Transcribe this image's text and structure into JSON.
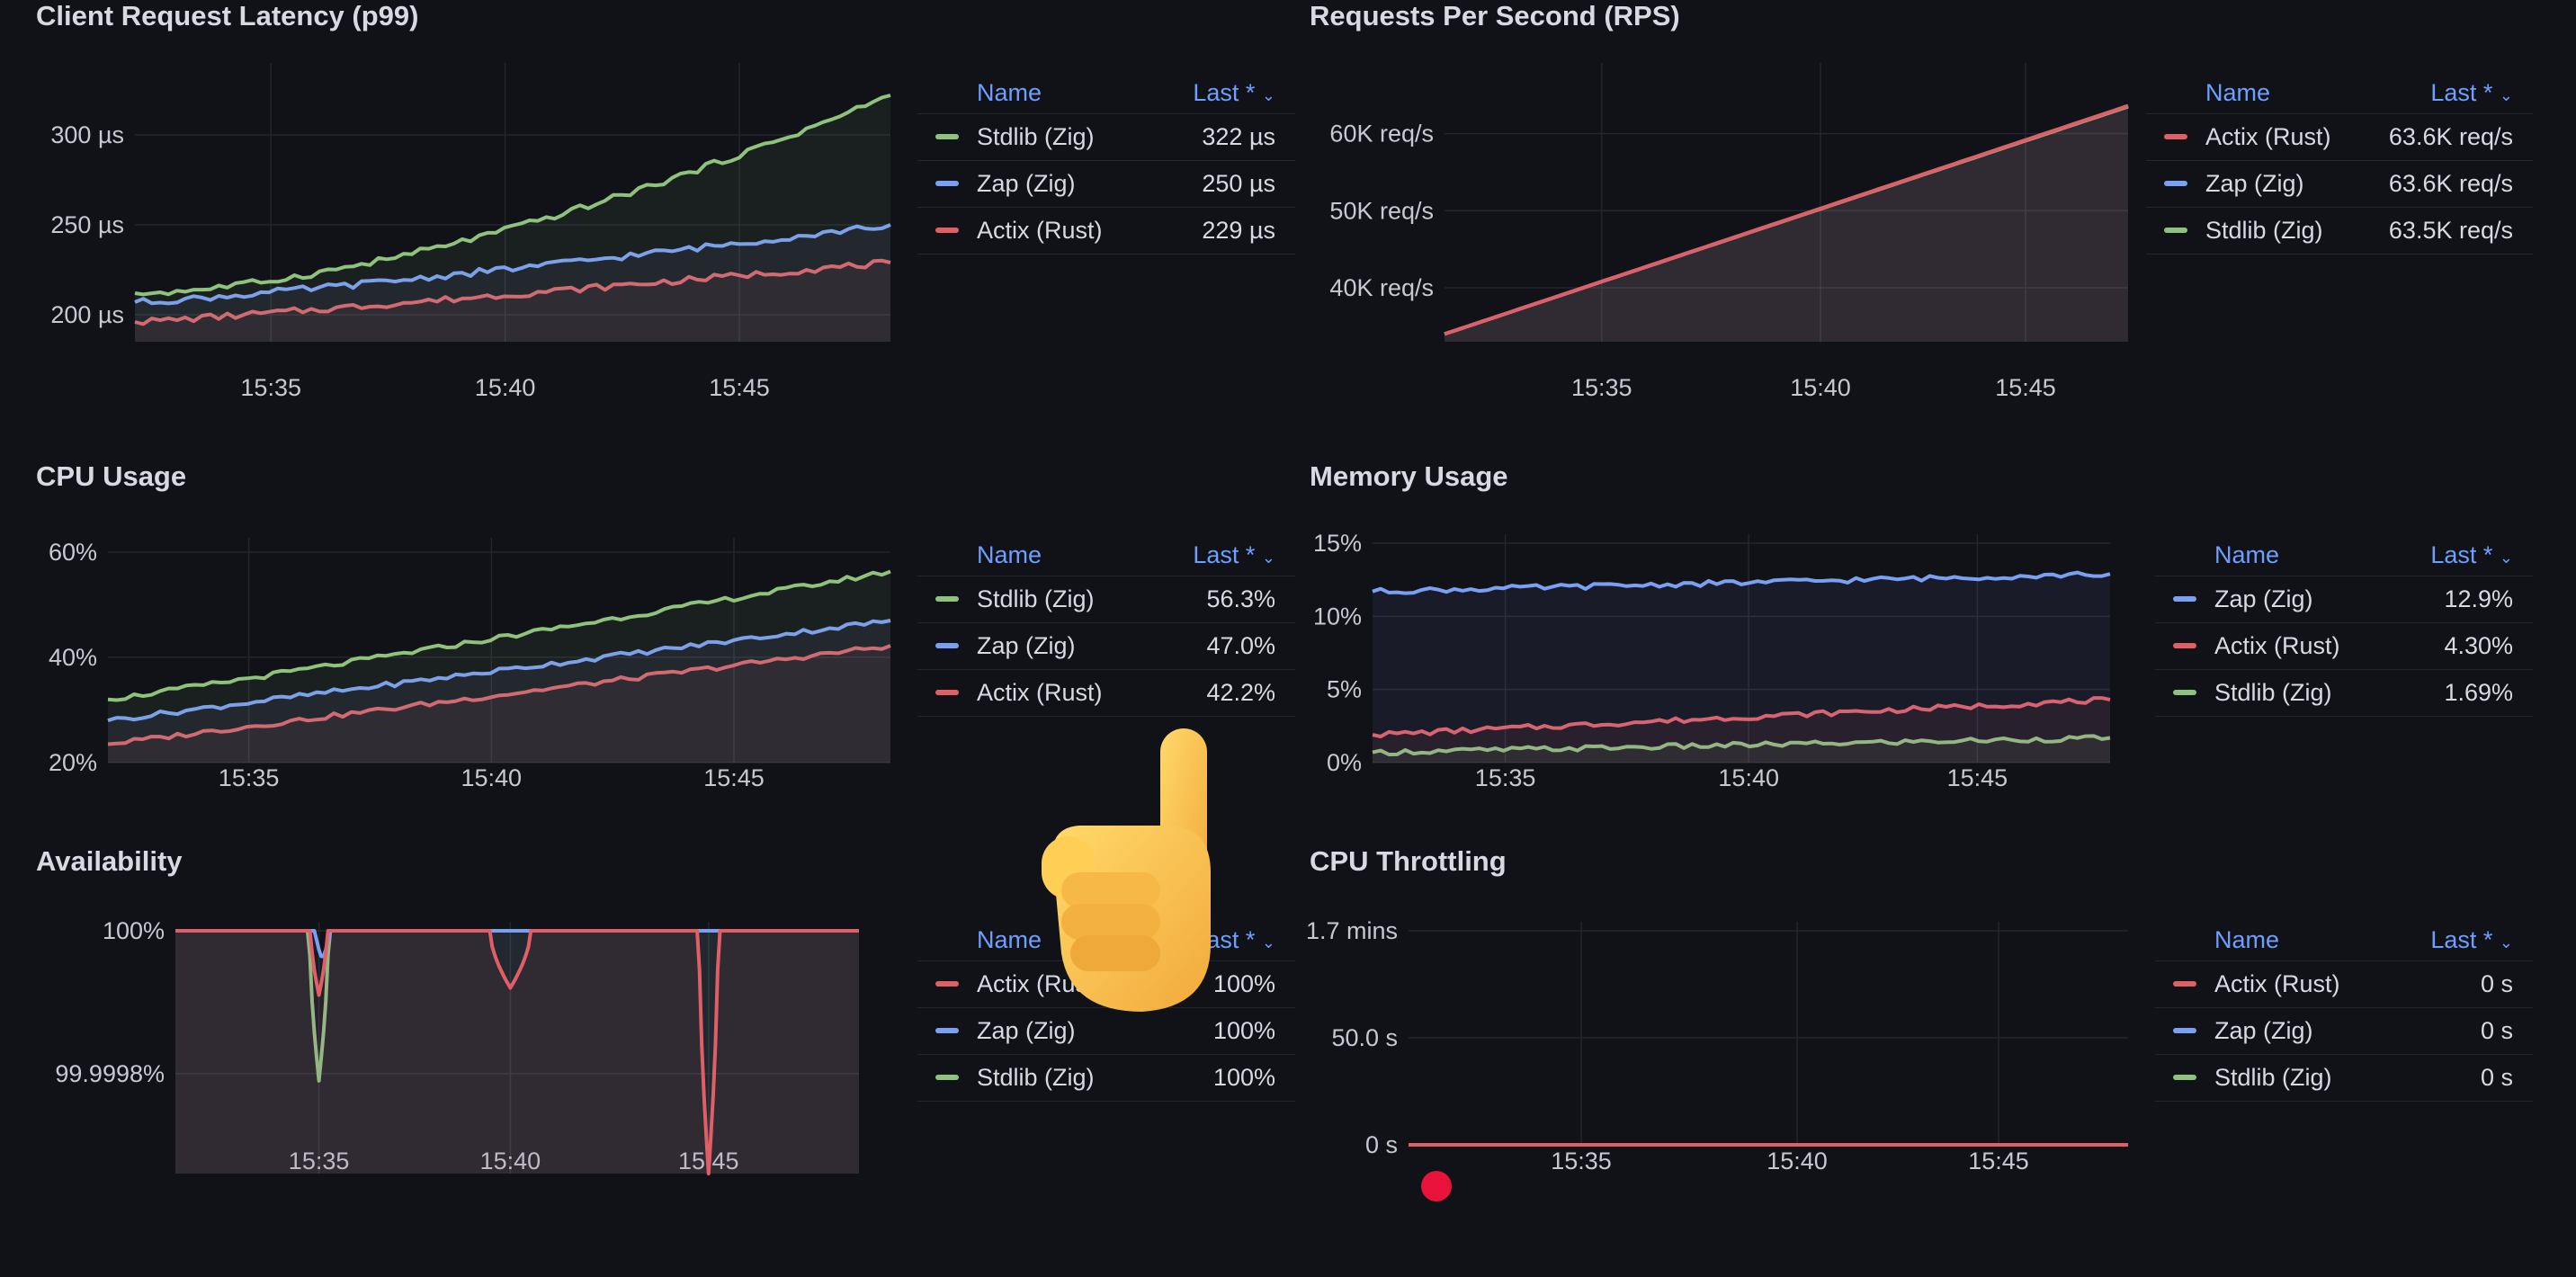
{
  "colors": {
    "green": "#8fc27c",
    "blue": "#7b9ff2",
    "red": "#e05f67",
    "grid": "#24262d",
    "header": "#6e9fff"
  },
  "legend_header": {
    "name": "Name",
    "value": "Last *",
    "sort_icon": "chevron-down-icon"
  },
  "panels": {
    "latency": {
      "title": "Client Request Latency (p99)",
      "y_ticks": [
        {
          "v": 200,
          "label": "200 µs"
        },
        {
          "v": 250,
          "label": "250 µs"
        },
        {
          "v": 300,
          "label": "300 µs"
        }
      ],
      "x_ticks": [
        "15:35",
        "15:40",
        "15:45"
      ],
      "chart_data": {
        "type": "line",
        "title": "Client Request Latency (p99)",
        "unit": "µs",
        "ylim": [
          185,
          335
        ],
        "x": [
          "15:32",
          "15:47"
        ],
        "series": [
          {
            "name": "Stdlib (Zig)",
            "color": "green",
            "start": 212,
            "end": 322,
            "curve": 1.6
          },
          {
            "name": "Zap (Zig)",
            "color": "blue",
            "start": 207,
            "end": 250,
            "curve": 1.2
          },
          {
            "name": "Actix (Rust)",
            "color": "red",
            "start": 196,
            "end": 229,
            "curve": 1.1
          }
        ]
      },
      "legend": [
        {
          "name": "Stdlib (Zig)",
          "value": "322 µs",
          "color": "green"
        },
        {
          "name": "Zap (Zig)",
          "value": "250 µs",
          "color": "blue"
        },
        {
          "name": "Actix (Rust)",
          "value": "229 µs",
          "color": "red"
        }
      ]
    },
    "rps": {
      "title": "Requests Per Second (RPS)",
      "y_ticks": [
        {
          "v": 40000,
          "label": "40K req/s"
        },
        {
          "v": 50000,
          "label": "50K req/s"
        },
        {
          "v": 60000,
          "label": "60K req/s"
        }
      ],
      "x_ticks": [
        "15:35",
        "15:40",
        "15:45"
      ],
      "chart_data": {
        "type": "line",
        "title": "Requests Per Second (RPS)",
        "unit": "req/s",
        "ylim": [
          33000,
          68000
        ],
        "x": [
          "15:32",
          "15:47"
        ],
        "series": [
          {
            "name": "Actix (Rust)",
            "color": "red",
            "start": 34000,
            "end": 63600,
            "curve": 1.0
          },
          {
            "name": "Zap (Zig)",
            "color": "blue",
            "start": 34000,
            "end": 63600,
            "curve": 1.0
          },
          {
            "name": "Stdlib (Zig)",
            "color": "green",
            "start": 34000,
            "end": 63500,
            "curve": 1.0
          }
        ]
      },
      "legend": [
        {
          "name": "Actix (Rust)",
          "value": "63.6K req/s",
          "color": "red"
        },
        {
          "name": "Zap (Zig)",
          "value": "63.6K req/s",
          "color": "blue"
        },
        {
          "name": "Stdlib (Zig)",
          "value": "63.5K req/s",
          "color": "green"
        }
      ]
    },
    "cpu": {
      "title": "CPU Usage",
      "y_ticks": [
        {
          "v": 20,
          "label": "20%"
        },
        {
          "v": 40,
          "label": "40%"
        },
        {
          "v": 60,
          "label": "60%"
        }
      ],
      "x_ticks": [
        "15:35",
        "15:40",
        "15:45"
      ],
      "chart_data": {
        "type": "line",
        "title": "CPU Usage",
        "unit": "%",
        "ylim": [
          20,
          61
        ],
        "x": [
          "15:32",
          "15:47"
        ],
        "series": [
          {
            "name": "Stdlib (Zig)",
            "color": "green",
            "start": 32,
            "end": 56.3,
            "curve": 1.05
          },
          {
            "name": "Zap (Zig)",
            "color": "blue",
            "start": 28,
            "end": 47.0,
            "curve": 1.0
          },
          {
            "name": "Actix (Rust)",
            "color": "red",
            "start": 23.5,
            "end": 42.2,
            "curve": 1.0
          }
        ]
      },
      "legend": [
        {
          "name": "Stdlib (Zig)",
          "value": "56.3%",
          "color": "green"
        },
        {
          "name": "Zap (Zig)",
          "value": "47.0%",
          "color": "blue"
        },
        {
          "name": "Actix (Rust)",
          "value": "42.2%",
          "color": "red"
        }
      ]
    },
    "memory": {
      "title": "Memory Usage",
      "y_ticks": [
        {
          "v": 0,
          "label": "0%"
        },
        {
          "v": 5,
          "label": "5%"
        },
        {
          "v": 10,
          "label": "10%"
        },
        {
          "v": 15,
          "label": "15%"
        }
      ],
      "x_ticks": [
        "15:35",
        "15:40",
        "15:45"
      ],
      "chart_data": {
        "type": "line",
        "title": "Memory Usage",
        "unit": "%",
        "ylim": [
          0,
          15
        ],
        "x": [
          "15:32",
          "15:47"
        ],
        "series": [
          {
            "name": "Zap (Zig)",
            "color": "blue",
            "start": 11.7,
            "end": 12.9,
            "curve": 1.0
          },
          {
            "name": "Actix (Rust)",
            "color": "red",
            "start": 1.9,
            "end": 4.3,
            "curve": 1.0
          },
          {
            "name": "Stdlib (Zig)",
            "color": "green",
            "start": 0.7,
            "end": 1.69,
            "curve": 1.0
          }
        ]
      },
      "legend": [
        {
          "name": "Zap (Zig)",
          "value": "12.9%",
          "color": "blue"
        },
        {
          "name": "Actix (Rust)",
          "value": "4.30%",
          "color": "red"
        },
        {
          "name": "Stdlib (Zig)",
          "value": "1.69%",
          "color": "green"
        }
      ]
    },
    "availability": {
      "title": "Availability",
      "y_ticks": [
        {
          "v": 100,
          "label": "100%"
        },
        {
          "v": 99.9998,
          "label": "99.9998%"
        }
      ],
      "x_ticks": [
        "15:35",
        "15:40",
        "15:45"
      ],
      "chart_data": {
        "type": "line",
        "title": "Availability",
        "unit": "%",
        "ylim": [
          99.99966,
          100.0
        ],
        "x": [
          "15:32",
          "15:47"
        ],
        "series": [
          {
            "name": "Actix (Rust)",
            "color": "red",
            "base": 100,
            "dips": [
              {
                "t": 0.21,
                "v": 99.99991,
                "w": 0.012
              },
              {
                "t": 0.49,
                "v": 99.99992,
                "w": 0.03
              },
              {
                "t": 0.78,
                "v": 99.99966,
                "w": 0.014
              }
            ]
          },
          {
            "name": "Zap (Zig)",
            "color": "blue",
            "base": 100,
            "dips": [
              {
                "t": 0.215,
                "v": 99.99996,
                "w": 0.01
              }
            ]
          },
          {
            "name": "Stdlib (Zig)",
            "color": "green",
            "base": 100,
            "dips": [
              {
                "t": 0.21,
                "v": 99.99979,
                "w": 0.014
              }
            ]
          }
        ]
      },
      "legend": [
        {
          "name": "Actix (Rust)",
          "value": "100%",
          "color": "red"
        },
        {
          "name": "Zap (Zig)",
          "value": "100%",
          "color": "blue"
        },
        {
          "name": "Stdlib (Zig)",
          "value": "100%",
          "color": "green"
        }
      ]
    },
    "throttling": {
      "title": "CPU Throttling",
      "y_ticks": [
        {
          "v": 0,
          "label": "0 s"
        },
        {
          "v": 50,
          "label": "50.0 s"
        },
        {
          "v": 100,
          "label": "1.7 mins"
        }
      ],
      "x_ticks": [
        "15:35",
        "15:40",
        "15:45"
      ],
      "chart_data": {
        "type": "line",
        "title": "CPU Throttling",
        "unit": "s",
        "ylim": [
          0,
          100
        ],
        "x": [
          "15:32",
          "15:47"
        ],
        "series": [
          {
            "name": "Actix (Rust)",
            "color": "red",
            "start": 0,
            "end": 0,
            "curve": 1.0
          },
          {
            "name": "Zap (Zig)",
            "color": "blue",
            "start": 0,
            "end": 0,
            "curve": 1.0
          },
          {
            "name": "Stdlib (Zig)",
            "color": "green",
            "start": 0,
            "end": 0,
            "curve": 1.0
          }
        ]
      },
      "legend": [
        {
          "name": "Actix (Rust)",
          "value": "0 s",
          "color": "red"
        },
        {
          "name": "Zap (Zig)",
          "value": "0 s",
          "color": "blue"
        },
        {
          "name": "Stdlib (Zig)",
          "value": "0 s",
          "color": "green"
        }
      ]
    }
  }
}
